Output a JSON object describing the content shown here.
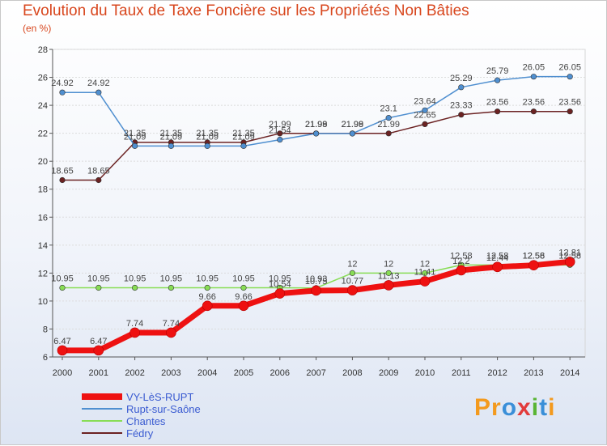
{
  "chart_data": {
    "type": "line",
    "title": "Evolution du Taux de Taxe Foncière sur les Propriétés Non Bâties",
    "ylabel": "(en %)",
    "xlabel": "",
    "ylim": [
      6,
      28
    ],
    "yticks": [
      6,
      8,
      10,
      12,
      14,
      16,
      18,
      20,
      22,
      24,
      26,
      28
    ],
    "x": [
      "2000",
      "2001",
      "2002",
      "2003",
      "2004",
      "2005",
      "2006",
      "2007",
      "2008",
      "2009",
      "2010",
      "2011",
      "2012",
      "2013",
      "2014"
    ],
    "series": [
      {
        "name": "VY-LèS-RUPT",
        "color": "#ee1111",
        "values": [
          6.47,
          6.47,
          7.74,
          7.74,
          9.66,
          9.66,
          10.54,
          10.75,
          10.77,
          11.13,
          11.41,
          12.2,
          12.44,
          12.56,
          12.81
        ],
        "labels": [
          "6.47",
          "6.47",
          "7.74",
          "7.74",
          "9.66",
          "9.66",
          "10.54",
          "10.75",
          "10.77",
          "11.13",
          "11.41",
          "12.2",
          "12.44",
          "12.56",
          "12.81"
        ]
      },
      {
        "name": "Rupt-sur-Saône",
        "color": "#4f8fd0",
        "values": [
          24.92,
          24.92,
          21.09,
          21.09,
          21.09,
          21.09,
          21.54,
          21.98,
          21.98,
          23.1,
          23.64,
          25.29,
          25.79,
          26.05,
          26.05
        ],
        "labels": [
          "24.92",
          "24.92",
          "21.09",
          "21.09",
          "21.09",
          "21.09",
          "21.54",
          "21.98",
          "21.98",
          "23.1",
          "23.64",
          "25.29",
          "25.79",
          "26.05",
          "26.05"
        ]
      },
      {
        "name": "Chantes",
        "color": "#88dd55",
        "values": [
          10.95,
          10.95,
          10.95,
          10.95,
          10.95,
          10.95,
          10.95,
          10.93,
          12,
          12,
          12,
          12.58,
          12.58,
          12.58,
          12.58
        ],
        "labels": [
          "10.95",
          "10.95",
          "10.95",
          "10.95",
          "10.95",
          "10.95",
          "10.95",
          "10.93",
          "12",
          "12",
          "12",
          "12.58",
          "12.58",
          "12.58",
          "12.58"
        ]
      },
      {
        "name": "Fédry",
        "color": "#6b2222",
        "values": [
          18.65,
          18.65,
          21.35,
          21.35,
          21.35,
          21.35,
          21.99,
          21.99,
          21.99,
          21.99,
          22.65,
          23.33,
          23.56,
          23.56,
          23.56
        ],
        "labels": [
          "18.65",
          "18.65",
          "21.35",
          "21.35",
          "21.35",
          "21.35",
          "21.99",
          "21.99",
          "21.99",
          "21.99",
          "22.65",
          "23.33",
          "23.56",
          "23.56",
          "23.56"
        ]
      }
    ],
    "legend": "bottom-left",
    "grid": "horizontal"
  },
  "brand": {
    "text": "Proxiti",
    "letters": [
      "P",
      "r",
      "o",
      "x",
      "i",
      "t",
      "i"
    ]
  }
}
